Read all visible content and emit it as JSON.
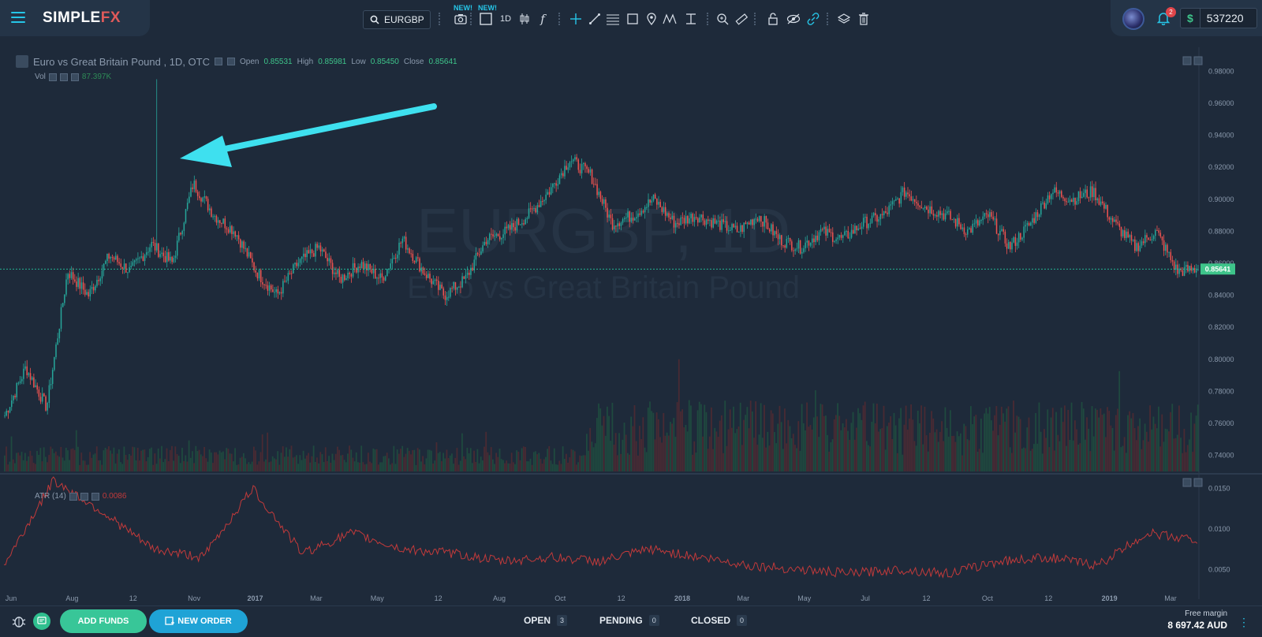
{
  "brand": {
    "name_main": "SIMPLE",
    "name_fx": "FX",
    "menu_icon": "hamburger-icon"
  },
  "toolbar": {
    "symbol": "EURGBP",
    "new_tag": "NEW!",
    "interval": "1D",
    "function_glyph": "f",
    "icons": [
      "screenshot-icon",
      "chart-layout-icon",
      "candles-icon",
      "function-icon",
      "crosshair-icon",
      "trendline-icon",
      "fib-icon",
      "rectangle-icon",
      "pin-icon",
      "pattern-icon",
      "text-icon",
      "zoom-icon",
      "ruler-icon",
      "lock-icon",
      "hide-icon",
      "link-icon",
      "layers-icon",
      "trash-icon"
    ]
  },
  "account": {
    "notifications": "2",
    "currency_symbol": "$",
    "balance": "537220"
  },
  "chart": {
    "title": "Euro vs Great Britain Pound , 1D, OTC",
    "ohlc": {
      "open_label": "Open",
      "open": "0.85531",
      "high_label": "High",
      "high": "0.85981",
      "low_label": "Low",
      "low": "0.85450",
      "close_label": "Close",
      "close": "0.85641"
    },
    "watermark_symbol": "EURGBP, 1D",
    "watermark_name": "Euro vs Great Britain Pound",
    "vol_label": "Vol",
    "vol_value": "87.397K",
    "atr_label": "ATR (14)",
    "atr_value": "0.0086",
    "last_price": "0.85641",
    "price_ticks": [
      "0.98000",
      "0.96000",
      "0.94000",
      "0.92000",
      "0.90000",
      "0.88000",
      "0.86000",
      "0.84000",
      "0.82000",
      "0.80000",
      "0.78000",
      "0.76000",
      "0.74000"
    ],
    "atr_ticks": [
      "0.0150",
      "0.0100",
      "0.0050"
    ],
    "time_ticks": [
      "Jun",
      "Aug",
      "12",
      "Nov",
      "2017",
      "Mar",
      "May",
      "12",
      "Aug",
      "Oct",
      "12",
      "2018",
      "Mar",
      "May",
      "Jul",
      "12",
      "Oct",
      "12",
      "2019",
      "Mar"
    ],
    "colors": {
      "up": "#26a69a",
      "down": "#ef5350",
      "arrow": "#3ee0ef",
      "atr": "#c23a3a",
      "price_line": "#26c6a0"
    }
  },
  "chart_data": {
    "type": "candlestick",
    "title": "Euro vs Great Britain Pound , 1D, OTC",
    "x_start": "Jun 2016",
    "x_end": "Mar 2019",
    "ylim": [
      0.73,
      0.99
    ],
    "close_path": [
      {
        "date": "Jun 2016",
        "close": 0.765
      },
      {
        "date": "Jun 2016",
        "close": 0.795
      },
      {
        "date": "Jun 2016",
        "close": 0.77
      },
      {
        "date": "Jul 2016",
        "close": 0.855
      },
      {
        "date": "Jul 2016",
        "close": 0.84
      },
      {
        "date": "Aug 2016",
        "close": 0.865
      },
      {
        "date": "Aug 2016",
        "close": 0.855
      },
      {
        "date": "Sep 2016",
        "close": 0.872
      },
      {
        "date": "Sep 2016",
        "close": 0.86
      },
      {
        "date": "Oct 2016",
        "close": 0.91
      },
      {
        "date": "Oct 2016",
        "close": 0.89
      },
      {
        "date": "Nov 2016",
        "close": 0.88
      },
      {
        "date": "Nov 2016",
        "close": 0.855
      },
      {
        "date": "Dec 2016",
        "close": 0.84
      },
      {
        "date": "Dec 2016",
        "close": 0.86
      },
      {
        "date": "Jan 2017",
        "close": 0.87
      },
      {
        "date": "Jan 2017",
        "close": 0.85
      },
      {
        "date": "Feb 2017",
        "close": 0.86
      },
      {
        "date": "Mar 2017",
        "close": 0.85
      },
      {
        "date": "Mar 2017",
        "close": 0.875
      },
      {
        "date": "Apr 2017",
        "close": 0.855
      },
      {
        "date": "Apr 2017",
        "close": 0.84
      },
      {
        "date": "May 2017",
        "close": 0.85
      },
      {
        "date": "Jun 2017",
        "close": 0.875
      },
      {
        "date": "Jun 2017",
        "close": 0.88
      },
      {
        "date": "Jul 2017",
        "close": 0.89
      },
      {
        "date": "Aug 2017",
        "close": 0.905
      },
      {
        "date": "Aug 2017",
        "close": 0.925
      },
      {
        "date": "Sep 2017",
        "close": 0.915
      },
      {
        "date": "Sep 2017",
        "close": 0.885
      },
      {
        "date": "Oct 2017",
        "close": 0.89
      },
      {
        "date": "Nov 2017",
        "close": 0.9
      },
      {
        "date": "Nov 2017",
        "close": 0.885
      },
      {
        "date": "Dec 2017",
        "close": 0.89
      },
      {
        "date": "Jan 2018",
        "close": 0.885
      },
      {
        "date": "Feb 2018",
        "close": 0.88
      },
      {
        "date": "Mar 2018",
        "close": 0.89
      },
      {
        "date": "Mar 2018",
        "close": 0.875
      },
      {
        "date": "Apr 2018",
        "close": 0.87
      },
      {
        "date": "May 2018",
        "close": 0.88
      },
      {
        "date": "Jun 2018",
        "close": 0.875
      },
      {
        "date": "Jul 2018",
        "close": 0.885
      },
      {
        "date": "Jul 2018",
        "close": 0.89
      },
      {
        "date": "Aug 2018",
        "close": 0.905
      },
      {
        "date": "Aug 2018",
        "close": 0.895
      },
      {
        "date": "Sep 2018",
        "close": 0.89
      },
      {
        "date": "Oct 2018",
        "close": 0.88
      },
      {
        "date": "Oct 2018",
        "close": 0.89
      },
      {
        "date": "Nov 2018",
        "close": 0.87
      },
      {
        "date": "Nov 2018",
        "close": 0.885
      },
      {
        "date": "Dec 2018",
        "close": 0.905
      },
      {
        "date": "Dec 2018",
        "close": 0.9
      },
      {
        "date": "Jan 2019",
        "close": 0.905
      },
      {
        "date": "Jan 2019",
        "close": 0.885
      },
      {
        "date": "Feb 2019",
        "close": 0.87
      },
      {
        "date": "Feb 2019",
        "close": 0.88
      },
      {
        "date": "Mar 2019",
        "close": 0.855
      },
      {
        "date": "Mar 2019",
        "close": 0.85641
      }
    ],
    "atr_path": [
      {
        "date": "Jun 2016",
        "atr": 0.0055
      },
      {
        "date": "Jun 2016",
        "atr": 0.016
      },
      {
        "date": "Jul 2016",
        "atr": 0.012
      },
      {
        "date": "Aug 2016",
        "atr": 0.0075
      },
      {
        "date": "Sep 2016",
        "atr": 0.0065
      },
      {
        "date": "Oct 2016",
        "atr": 0.015
      },
      {
        "date": "Oct 2016",
        "atr": 0.007
      },
      {
        "date": "Nov 2016",
        "atr": 0.0095
      },
      {
        "date": "Dec 2016",
        "atr": 0.0075
      },
      {
        "date": "Jan 2017",
        "atr": 0.007
      },
      {
        "date": "Mar 2017",
        "atr": 0.006
      },
      {
        "date": "May 2017",
        "atr": 0.0065
      },
      {
        "date": "Jul 2017",
        "atr": 0.006
      },
      {
        "date": "Sep 2017",
        "atr": 0.0075
      },
      {
        "date": "Nov 2017",
        "atr": 0.0065
      },
      {
        "date": "Jan 2018",
        "atr": 0.0055
      },
      {
        "date": "Mar 2018",
        "atr": 0.005
      },
      {
        "date": "May 2018",
        "atr": 0.0045
      },
      {
        "date": "Jul 2018",
        "atr": 0.005
      },
      {
        "date": "Sep 2018",
        "atr": 0.0045
      },
      {
        "date": "Nov 2018",
        "atr": 0.006
      },
      {
        "date": "Jan 2019",
        "atr": 0.0065
      },
      {
        "date": "Feb 2019",
        "atr": 0.0055
      },
      {
        "date": "Mar 2019",
        "atr": 0.0095
      },
      {
        "date": "Mar 2019",
        "atr": 0.0086
      }
    ],
    "spike": {
      "date": "Oct 2016",
      "high": 0.975
    },
    "last": 0.85641
  },
  "bottom": {
    "add_funds": "ADD FUNDS",
    "new_order": "NEW ORDER",
    "tabs": [
      {
        "label": "OPEN",
        "count": "3"
      },
      {
        "label": "PENDING",
        "count": "0"
      },
      {
        "label": "CLOSED",
        "count": "0"
      }
    ],
    "free_margin_label": "Free margin",
    "free_margin_value": "8 697.42 AUD"
  }
}
